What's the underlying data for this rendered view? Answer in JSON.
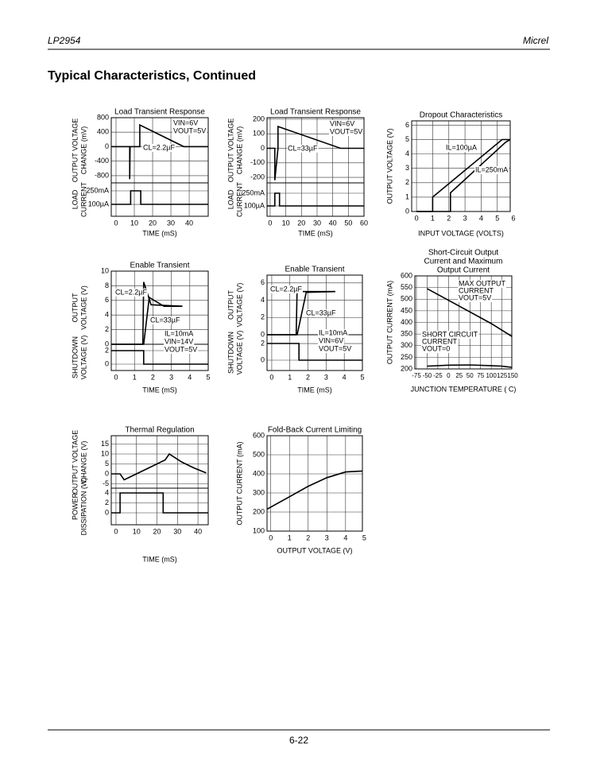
{
  "header": {
    "part": "LP2954",
    "company": "Micrel"
  },
  "title": "Typical Characteristics, Continued",
  "footer": {
    "page": "6-22"
  },
  "charts": [
    {
      "type": "line",
      "title": [
        "Load Transient Response"
      ],
      "xlabel": "TIME (mS)",
      "xlim": [
        -2.6,
        50.4
      ],
      "xticks": [
        0,
        10,
        20,
        30,
        40
      ],
      "panels": [
        {
          "ylabel": [
            "OUTPUT VOLTAGE",
            "CHANGE (mV)"
          ],
          "ylim": [
            -1000,
            800
          ],
          "yticks": [
            800,
            400,
            0,
            -400,
            -800
          ],
          "series": [
            {
              "color": "#000000",
              "x": [
                -2.6,
                7.5,
                7.5,
                7.7,
                13,
                13,
                37,
                38,
                50.4
              ],
              "y": [
                0,
                0,
                -900,
                0,
                0,
                600,
                0,
                0,
                0
              ]
            }
          ]
        },
        {
          "ylabel": [
            "LOAD",
            "CURRENT"
          ],
          "ylim": [
            -220,
            397
          ],
          "yticks": [
            {
              "value": 250,
              "label": "250mA"
            },
            {
              "value": 0.1,
              "label": "100µA"
            }
          ],
          "series": [
            {
              "color": "#000000",
              "x": [
                -2.6,
                8,
                8,
                13.5,
                13.5,
                50.4
              ],
              "y": [
                0.1,
                0.1,
                250,
                250,
                0.1,
                0.1
              ]
            }
          ]
        }
      ],
      "annotations": [
        "VIN=6V",
        "VOUT=5V",
        "CL=2.2µF"
      ]
    },
    {
      "type": "line",
      "title": [
        "Load Transient Response"
      ],
      "xlabel": "TIME (mS)",
      "xlim": [
        -2,
        60
      ],
      "xticks": [
        0,
        10,
        20,
        30,
        40,
        50,
        60
      ],
      "panels": [
        {
          "ylabel": [
            "OUTPUT VOLTAGE",
            "CHANGE (mV)"
          ],
          "ylim": [
            -238,
            211
          ],
          "yticks": [
            200,
            100,
            0,
            -100,
            -200
          ],
          "series": [
            {
              "color": "#000000",
              "x": [
                -2,
                3,
                3,
                5,
                5,
                45,
                47,
                60
              ],
              "y": [
                0,
                0,
                -220,
                0,
                150,
                0,
                0,
                0
              ]
            }
          ]
        },
        {
          "ylabel": [
            "LOAD",
            "CURRENT"
          ],
          "ylim": [
            -203,
            453
          ],
          "yticks": [
            {
              "value": 250,
              "label": "250mA"
            },
            {
              "value": 0.1,
              "label": "100µA"
            }
          ],
          "series": [
            {
              "color": "#000000",
              "x": [
                -2,
                3,
                3,
                6,
                6,
                60
              ],
              "y": [
                0.1,
                0.1,
                250,
                250,
                0.1,
                0.1
              ]
            }
          ]
        }
      ],
      "annotations": [
        "VIN=6V",
        "VOUT=5V",
        "CL=33µF"
      ]
    },
    {
      "type": "line",
      "title": [
        "Dropout Characteristics"
      ],
      "xlabel": "INPUT VOLTAGE (VOLTS)",
      "xlim": [
        -0.3,
        5.8
      ],
      "xticks": [
        0,
        1,
        2,
        3,
        4,
        5,
        6
      ],
      "panels": [
        {
          "ylabel": [
            "OUTPUT VOLTAGE (V)"
          ],
          "ylim": [
            0,
            6.3
          ],
          "yticks": [
            6,
            5,
            4,
            3,
            2,
            1,
            0
          ],
          "series": [
            {
              "color": "#000000",
              "x": [
                0,
                1,
                1,
                5.3,
                5.8
              ],
              "y": [
                0,
                0,
                1,
                5,
                5
              ]
            },
            {
              "color": "#000000",
              "x": [
                0,
                2.1,
                2.1,
                5.5,
                5.8
              ],
              "y": [
                0,
                0,
                1.3,
                4.8,
                5
              ]
            }
          ]
        }
      ],
      "annotations": [
        "IL=100µA",
        "IL=250mA"
      ]
    },
    {
      "type": "line",
      "title": [
        "Enable Transient"
      ],
      "xlabel": "TIME (mS)",
      "xlim": [
        -0.26,
        5
      ],
      "xticks": [
        0,
        1,
        2,
        3,
        4,
        5
      ],
      "panels": [
        {
          "ylabel": [
            "OUTPUT",
            "VOLTAGE (V)"
          ],
          "ylim": [
            0,
            10
          ],
          "yticks": [
            10,
            8,
            6,
            4,
            2,
            0
          ],
          "series": [
            {
              "color": "#000000",
              "x": [
                -0.26,
                1.45,
                1.5,
                1.9,
                3.6
              ],
              "y": [
                0,
                0,
                8.5,
                5.4,
                5.2
              ]
            },
            {
              "color": "#000000",
              "x": [
                -0.26,
                1.5,
                1.8,
                2.6,
                3.6
              ],
              "y": [
                0,
                0,
                6.4,
                5.2,
                5.2
              ]
            }
          ]
        },
        {
          "ylabel": [
            "SHUTDOWN",
            "VOLTAGE (V)"
          ],
          "ylim": [
            -0.94,
            2.94
          ],
          "yticks": [
            2,
            0
          ],
          "series": [
            {
              "color": "#000000",
              "x": [
                -0.26,
                1.5,
                1.5,
                5
              ],
              "y": [
                2,
                2,
                0,
                0
              ]
            }
          ]
        }
      ],
      "annotations": [
        "CL=2.2µF",
        "CL=33µF",
        "IL=10mA",
        "VIN=14V",
        "VOUT=5V"
      ]
    },
    {
      "type": "line",
      "title": [
        "Enable Transient"
      ],
      "xlabel": "TIME (mS)",
      "xlim": [
        -0.26,
        5
      ],
      "xticks": [
        0,
        1,
        2,
        3,
        4,
        5
      ],
      "panels": [
        {
          "ylabel": [
            "OUTPUT",
            "VOLTAGE (V)"
          ],
          "ylim": [
            0,
            6.9
          ],
          "yticks": [
            6,
            4,
            2,
            0
          ],
          "series": [
            {
              "color": "#000000",
              "x": [
                -0.26,
                1.35,
                1.4,
                1.6,
                3.5
              ],
              "y": [
                0,
                0,
                5.5,
                5,
                5
              ]
            },
            {
              "color": "#000000",
              "x": [
                -0.26,
                1.4,
                1.9,
                3.5
              ],
              "y": [
                0,
                0,
                4.9,
                5
              ]
            }
          ]
        },
        {
          "ylabel": [
            "SHUTDOWN",
            "VOLTAGE (V)"
          ],
          "ylim": [
            -1.24,
            3.05
          ],
          "yticks": [
            2,
            0
          ],
          "series": [
            {
              "color": "#000000",
              "x": [
                -0.26,
                1.5,
                1.5,
                5
              ],
              "y": [
                2,
                2,
                0,
                0
              ]
            }
          ]
        }
      ],
      "annotations": [
        "CL=2.2µF",
        "CL=33µF",
        "IL=10mA",
        "VIN=6V",
        "VOUT=5V"
      ]
    },
    {
      "type": "line",
      "title": [
        "Short-Circuit Output",
        "Current and Maximum",
        "Output Current"
      ],
      "xlabel": "JUNCTION TEMPERATURE ( C)",
      "xlim": [
        -78.7,
        148
      ],
      "xticks": [
        -75,
        -50,
        -25,
        0,
        25,
        50,
        75,
        100,
        125,
        150
      ],
      "panels": [
        {
          "ylabel": [
            "OUTPUT CURRENT (mA)"
          ],
          "ylim": [
            200,
            600
          ],
          "yticks": [
            600,
            550,
            500,
            450,
            400,
            350,
            300,
            250,
            200
          ],
          "series": [
            {
              "color": "#000000",
              "x": [
                -50,
                0,
                50,
                100,
                148
              ],
              "y": [
                545,
                495,
                445,
                395,
                340
              ]
            },
            {
              "color": "#000000",
              "x": [
                -50,
                0,
                50,
                100,
                125,
                148
              ],
              "y": [
                212,
                216,
                217,
                214,
                212,
                207
              ]
            }
          ]
        }
      ],
      "annotations": [
        "MAX OUTPUT",
        "CURRENT",
        "VOUT=5V",
        "SHORT CIRCUIT",
        "CURRENT",
        "VOUT=0"
      ]
    },
    {
      "type": "line",
      "title": [
        "Thermal Regulation"
      ],
      "xlabel": "TIME (mS)",
      "xlim": [
        -2.3,
        45
      ],
      "xticks": [
        0,
        10,
        20,
        30,
        40
      ],
      "panels": [
        {
          "ylabel": [
            "OUTPUT VOLTAGE",
            "CHANGE (V)"
          ],
          "ylim": [
            -7.2,
            19.2
          ],
          "yticks": [
            15,
            10,
            5,
            0,
            -5
          ],
          "series": [
            {
              "color": "#000000",
              "x": [
                -2.3,
                2,
                4,
                10,
                20,
                24,
                26,
                32,
                38,
                44
              ],
              "y": [
                0,
                0,
                -3,
                0,
                5,
                7,
                10,
                6,
                3,
                0.5
              ]
            }
          ]
        },
        {
          "ylabel": [
            "POWER",
            "DISSIPATION (W)"
          ],
          "ylim": [
            -2.4,
            4.96
          ],
          "yticks": [
            4,
            2,
            0
          ],
          "series": [
            {
              "color": "#000000",
              "x": [
                -2.3,
                2,
                2,
                23,
                23,
                45
              ],
              "y": [
                0,
                0,
                4,
                4,
                0,
                0
              ]
            }
          ]
        }
      ],
      "annotations": []
    },
    {
      "type": "line",
      "title": [
        "Fold-Back Current Limiting"
      ],
      "xlabel": "OUTPUT VOLTAGE (V)",
      "xlim": [
        -0.2,
        4.9
      ],
      "xticks": [
        0,
        1,
        2,
        3,
        4,
        5
      ],
      "panels": [
        {
          "ylabel": [
            "OUTPUT CURRENT (mA)"
          ],
          "ylim": [
            100,
            600
          ],
          "yticks": [
            600,
            500,
            400,
            300,
            200,
            100
          ],
          "series": [
            {
              "color": "#000000",
              "x": [
                -0.2,
                1,
                2,
                3,
                4,
                4.9
              ],
              "y": [
                215,
                280,
                335,
                380,
                410,
                415
              ]
            }
          ]
        }
      ],
      "annotations": []
    }
  ]
}
